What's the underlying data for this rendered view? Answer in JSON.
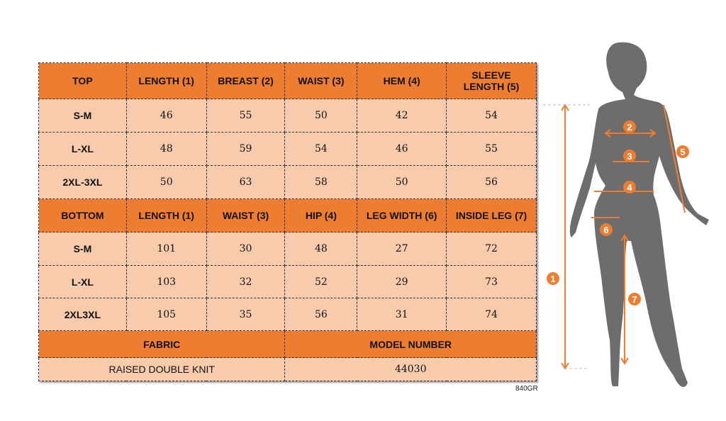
{
  "top": {
    "headers": [
      "TOP",
      "LENGTH (1)",
      "BREAST (2)",
      "WAIST (3)",
      "HEM (4)",
      "SLEEVE LENGTH (5)"
    ],
    "rows": [
      [
        "S-M",
        "46",
        "55",
        "50",
        "42",
        "54"
      ],
      [
        "L-XL",
        "48",
        "59",
        "54",
        "46",
        "55"
      ],
      [
        "2XL-3XL",
        "50",
        "63",
        "58",
        "50",
        "56"
      ]
    ]
  },
  "bottom": {
    "headers": [
      "BOTTOM",
      "LENGTH (1)",
      "WAIST (3)",
      "HIP (4)",
      "LEG WIDTH (6)",
      "INSIDE LEG (7)"
    ],
    "rows": [
      [
        "S-M",
        "101",
        "30",
        "48",
        "27",
        "72"
      ],
      [
        "L-XL",
        "103",
        "32",
        "52",
        "29",
        "73"
      ],
      [
        "2XL3XL",
        "105",
        "35",
        "56",
        "31",
        "74"
      ]
    ]
  },
  "fabric": {
    "label": "FABRIC",
    "value": "RAISED DOUBLE KNIT"
  },
  "model": {
    "label": "MODEL NUMBER",
    "value": "44030"
  },
  "code": "840GR",
  "figure": {
    "markers": [
      "1",
      "2",
      "3",
      "4",
      "5",
      "6",
      "7"
    ]
  },
  "colors": {
    "header": "#ed7d31",
    "cell": "#f8cbad",
    "silhouette": "#6d6d6d"
  }
}
